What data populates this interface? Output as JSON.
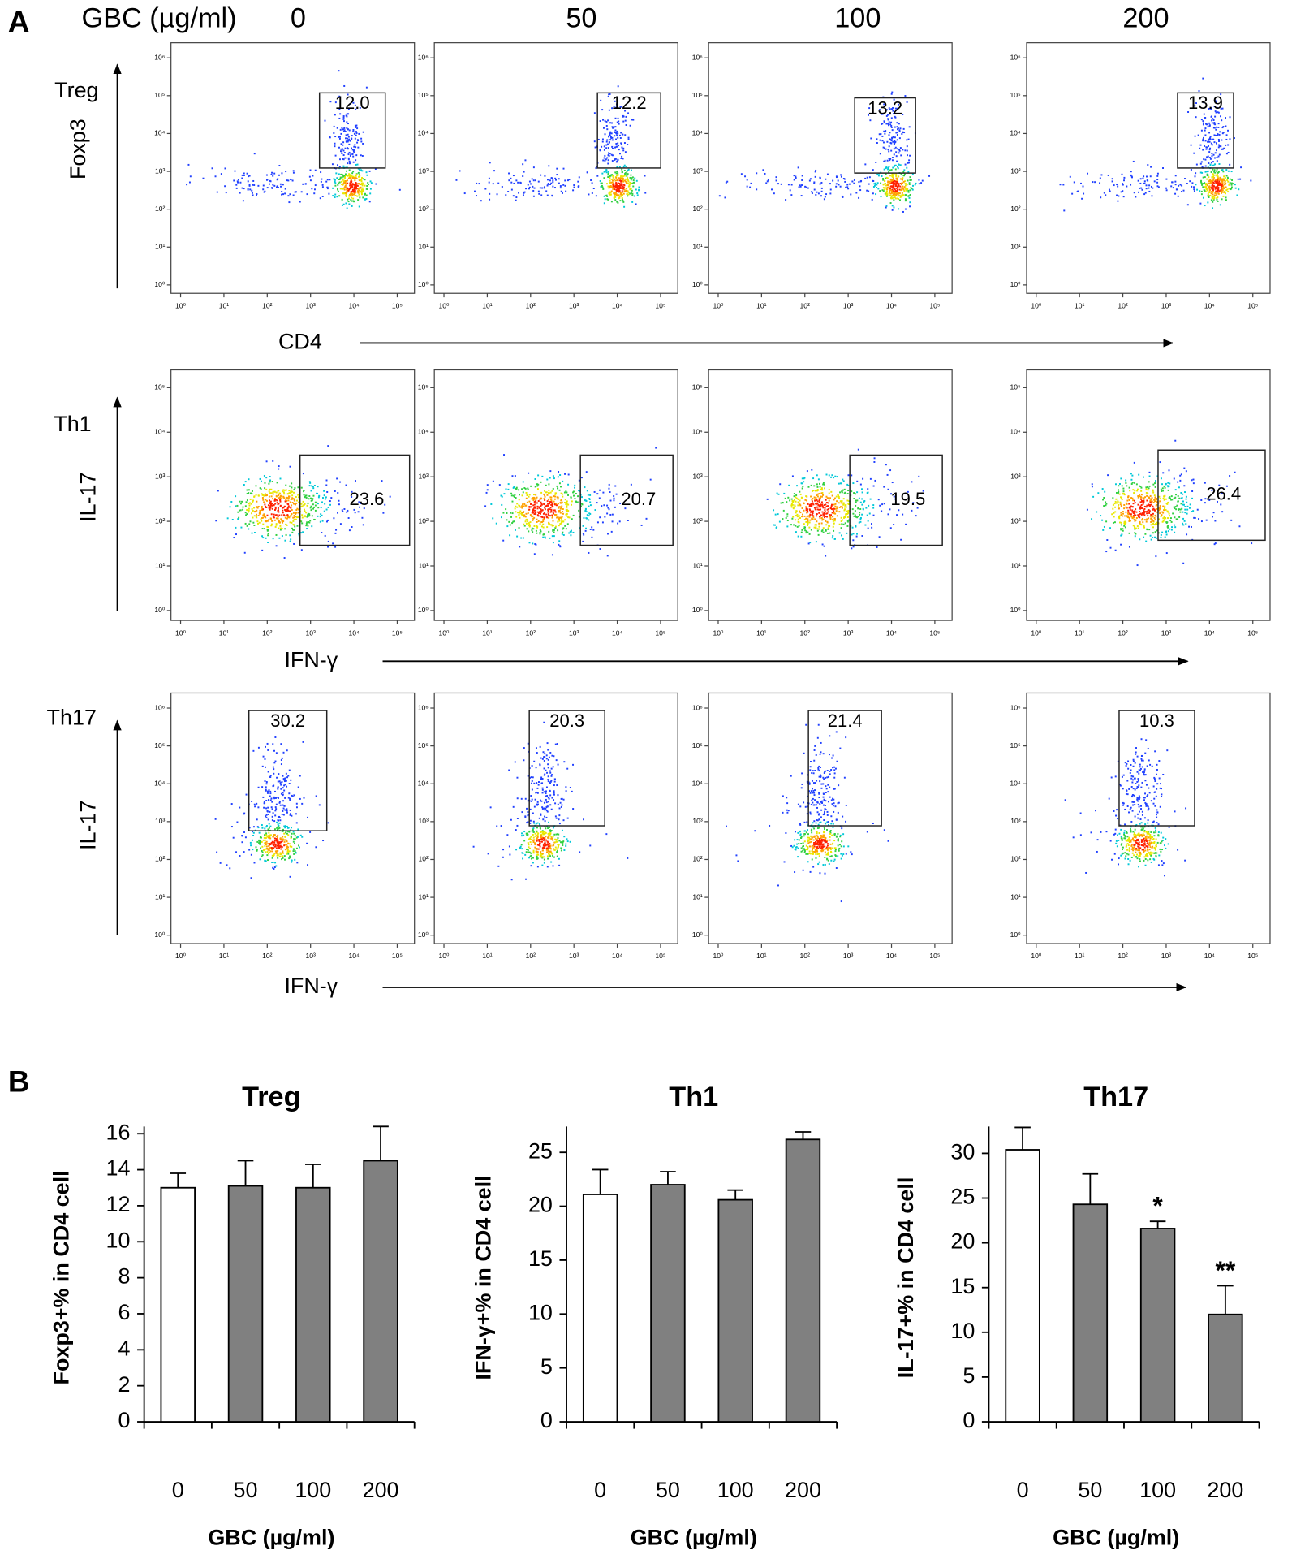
{
  "panel_a": {
    "label": "A",
    "dose_label": "GBC (µg/ml)",
    "doses": [
      "0",
      "50",
      "100",
      "200"
    ],
    "log": true,
    "rows": [
      {
        "name": "Treg",
        "y_label": "Foxp3",
        "x_label": "CD4",
        "values": [
          12.0,
          12.2,
          13.2,
          13.9
        ],
        "value_labels": [
          "12.0",
          "12.2",
          "13.2",
          "13.9"
        ],
        "xlim": [
          0.6,
          250000
        ],
        "ylim": [
          0.6,
          2500000
        ],
        "xticks": [
          {
            "value": 1,
            "label": "10⁰"
          },
          {
            "value": 10,
            "label": "10¹"
          },
          {
            "value": 100,
            "label": "10²"
          },
          {
            "value": 1000,
            "label": "10³"
          },
          {
            "value": 10000,
            "label": "10⁴"
          },
          {
            "value": 100000,
            "label": "10⁵"
          }
        ],
        "yticks": [
          {
            "value": 1,
            "label": "10⁰"
          },
          {
            "value": 10,
            "label": "10¹"
          },
          {
            "value": 100,
            "label": "10²"
          },
          {
            "value": 1000,
            "label": "10³"
          },
          {
            "value": 10000,
            "label": "10⁴"
          },
          {
            "value": 100000,
            "label": "10⁵"
          },
          {
            "value": 1000000,
            "label": "10⁶"
          }
        ]
      },
      {
        "name": "Th1",
        "y_label": "IL-17",
        "x_label": "IFN-γ",
        "values": [
          23.6,
          20.7,
          19.5,
          26.4
        ],
        "value_labels": [
          "23.6",
          "20.7",
          "19.5",
          "26.4"
        ],
        "xlim": [
          0.6,
          250000
        ],
        "ylim": [
          0.6,
          250000
        ],
        "xticks": [
          {
            "value": 1,
            "label": "10⁰"
          },
          {
            "value": 10,
            "label": "10¹"
          },
          {
            "value": 100,
            "label": "10²"
          },
          {
            "value": 1000,
            "label": "10³"
          },
          {
            "value": 10000,
            "label": "10⁴"
          },
          {
            "value": 100000,
            "label": "10⁵"
          }
        ],
        "yticks": [
          {
            "value": 1,
            "label": "10⁰"
          },
          {
            "value": 10,
            "label": "10¹"
          },
          {
            "value": 100,
            "label": "10²"
          },
          {
            "value": 1000,
            "label": "10³"
          },
          {
            "value": 10000,
            "label": "10⁴"
          },
          {
            "value": 100000,
            "label": "10⁵"
          }
        ]
      },
      {
        "name": "Th17",
        "y_label": "IL-17",
        "x_label": "IFN-γ",
        "values": [
          30.2,
          20.3,
          21.4,
          10.3
        ],
        "value_labels": [
          "30.2",
          "20.3",
          "21.4",
          "10.3"
        ],
        "xlim": [
          0.6,
          250000
        ],
        "ylim": [
          0.6,
          2500000
        ],
        "xticks": [
          {
            "value": 1,
            "label": "10⁰"
          },
          {
            "value": 10,
            "label": "10¹"
          },
          {
            "value": 100,
            "label": "10²"
          },
          {
            "value": 1000,
            "label": "10³"
          },
          {
            "value": 10000,
            "label": "10⁴"
          },
          {
            "value": 100000,
            "label": "10⁵"
          }
        ],
        "yticks": [
          {
            "value": 1,
            "label": "10⁰"
          },
          {
            "value": 10,
            "label": "10¹"
          },
          {
            "value": 100,
            "label": "10²"
          },
          {
            "value": 1000,
            "label": "10³"
          },
          {
            "value": 10000,
            "label": "10⁴"
          },
          {
            "value": 100000,
            "label": "10⁵"
          },
          {
            "value": 1000000,
            "label": "10⁶"
          }
        ]
      }
    ]
  },
  "panel_b_label": "B",
  "chart_data": [
    {
      "type": "bar",
      "title": "Treg",
      "y_label": "Foxp3+% in CD4 cell",
      "x_label": "GBC (µg/ml)",
      "categories": [
        "0",
        "50",
        "100",
        "200"
      ],
      "values": [
        13.0,
        13.1,
        13.0,
        14.5
      ],
      "errors": [
        0.8,
        1.4,
        1.3,
        1.9
      ],
      "colors": [
        "#ffffff",
        "#808080",
        "#808080",
        "#808080"
      ],
      "annotations": [
        null,
        null,
        null,
        null
      ],
      "ylim": [
        0,
        16.4
      ],
      "yticks": [
        0,
        2,
        4,
        6,
        8,
        10,
        12,
        14,
        16
      ]
    },
    {
      "type": "bar",
      "title": "Th1",
      "y_label": "IFN-γ+% in CD4 cell",
      "x_label": "GBC (µg/ml)",
      "categories": [
        "0",
        "50",
        "100",
        "200"
      ],
      "values": [
        21.1,
        22.0,
        20.6,
        26.2
      ],
      "errors": [
        2.3,
        1.2,
        0.9,
        0.7
      ],
      "colors": [
        "#ffffff",
        "#808080",
        "#808080",
        "#808080"
      ],
      "annotations": [
        null,
        null,
        null,
        null
      ],
      "ylim": [
        0,
        27.4
      ],
      "yticks": [
        0,
        5,
        10,
        15,
        20,
        25
      ]
    },
    {
      "type": "bar",
      "title": "Th17",
      "y_label": "IL-17+% in CD4 cell",
      "x_label": "GBC (µg/ml)",
      "categories": [
        "0",
        "50",
        "100",
        "200"
      ],
      "values": [
        30.4,
        24.3,
        21.6,
        12.0
      ],
      "errors": [
        2.5,
        3.4,
        0.8,
        3.2
      ],
      "colors": [
        "#ffffff",
        "#808080",
        "#808080",
        "#808080"
      ],
      "annotations": [
        null,
        null,
        "*",
        "**"
      ],
      "ylim": [
        0,
        33
      ],
      "yticks": [
        0,
        5,
        10,
        15,
        20,
        25,
        30
      ]
    }
  ]
}
